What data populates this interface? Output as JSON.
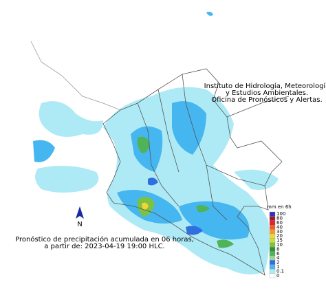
{
  "header": {
    "lines": [
      "Instituto de Hidrología, Meteorología",
      "y Estudios Ambientales.",
      "Oficina de Pronósticos y Alertas."
    ]
  },
  "caption": {
    "lines": [
      "Pronóstico de precipitación acumulada en 06 horas,",
      "a partir de: 2023-04-19 19:00 HLC."
    ]
  },
  "north_arrow": {
    "label": "N"
  },
  "legend": {
    "title": "mm en 6h",
    "levels": [
      {
        "label": "100",
        "color": "#3a2fb8"
      },
      {
        "label": "80",
        "color": "#9c1a2e"
      },
      {
        "label": "60",
        "color": "#e0242a"
      },
      {
        "label": "40",
        "color": "#f05a28"
      },
      {
        "label": "30",
        "color": "#f59a2a"
      },
      {
        "label": "20",
        "color": "#f2d43a"
      },
      {
        "label": "15",
        "color": "#c9e03c"
      },
      {
        "label": "10",
        "color": "#7cc242"
      },
      {
        "label": "8",
        "color": "#2f8f3a"
      },
      {
        "label": "6",
        "color": "#4fb35a"
      },
      {
        "label": "4",
        "color": "#9ad69a"
      },
      {
        "label": "2",
        "color": "#2f6fe0"
      },
      {
        "label": "1",
        "color": "#45b6f0"
      },
      {
        "label": "0.1",
        "color": "#aeeaf6"
      },
      {
        "label": "0",
        "color": "#ffffff"
      }
    ]
  }
}
